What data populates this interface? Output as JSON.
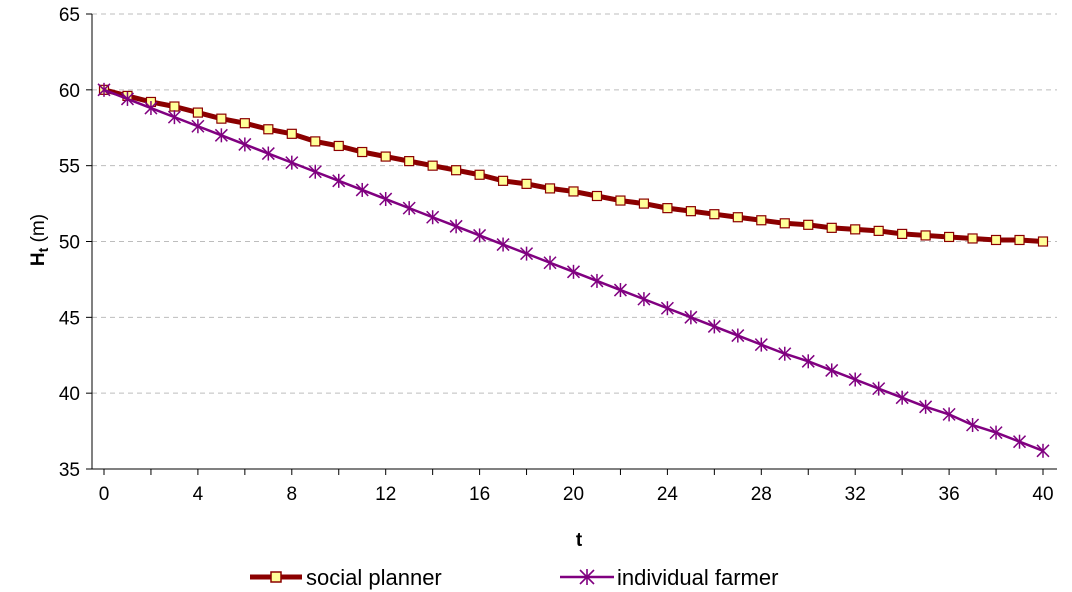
{
  "chart_data": {
    "type": "line",
    "title": "",
    "xlabel": "t",
    "ylabel_main": "H",
    "ylabel_sub": "t",
    "ylabel_unit": " (m)",
    "xlim": [
      0,
      40
    ],
    "ylim": [
      35,
      65
    ],
    "x_ticks": [
      0,
      4,
      8,
      12,
      16,
      20,
      24,
      28,
      32,
      36,
      40
    ],
    "y_ticks": [
      35,
      40,
      45,
      50,
      55,
      60,
      65
    ],
    "grid": "horizontal dashed",
    "legend_position": "bottom",
    "x": [
      0,
      1,
      2,
      3,
      4,
      5,
      6,
      7,
      8,
      9,
      10,
      11,
      12,
      13,
      14,
      15,
      16,
      17,
      18,
      19,
      20,
      21,
      22,
      23,
      24,
      25,
      26,
      27,
      28,
      29,
      30,
      31,
      32,
      33,
      34,
      35,
      36,
      37,
      38,
      39,
      40
    ],
    "series": [
      {
        "name": "social planner",
        "color": "#8b0000",
        "marker": "square",
        "marker_fill": "#ffff99",
        "values": [
          60.0,
          59.6,
          59.2,
          58.9,
          58.5,
          58.1,
          57.8,
          57.4,
          57.1,
          56.6,
          56.3,
          55.9,
          55.6,
          55.3,
          55.0,
          54.7,
          54.4,
          54.0,
          53.8,
          53.5,
          53.3,
          53.0,
          52.7,
          52.5,
          52.2,
          52.0,
          51.8,
          51.6,
          51.4,
          51.2,
          51.1,
          50.9,
          50.8,
          50.7,
          50.5,
          50.4,
          50.3,
          50.2,
          50.1,
          50.1,
          50.0
        ]
      },
      {
        "name": "individual farmer",
        "color": "#800080",
        "marker": "asterisk",
        "values": [
          60.0,
          59.4,
          58.8,
          58.2,
          57.6,
          57.0,
          56.4,
          55.8,
          55.2,
          54.6,
          54.0,
          53.4,
          52.8,
          52.2,
          51.6,
          51.0,
          50.4,
          49.8,
          49.2,
          48.6,
          48.0,
          47.4,
          46.8,
          46.2,
          45.6,
          45.0,
          44.4,
          43.8,
          43.2,
          42.6,
          42.1,
          41.5,
          40.9,
          40.3,
          39.7,
          39.1,
          38.6,
          37.9,
          37.4,
          36.8,
          36.2
        ]
      }
    ]
  }
}
